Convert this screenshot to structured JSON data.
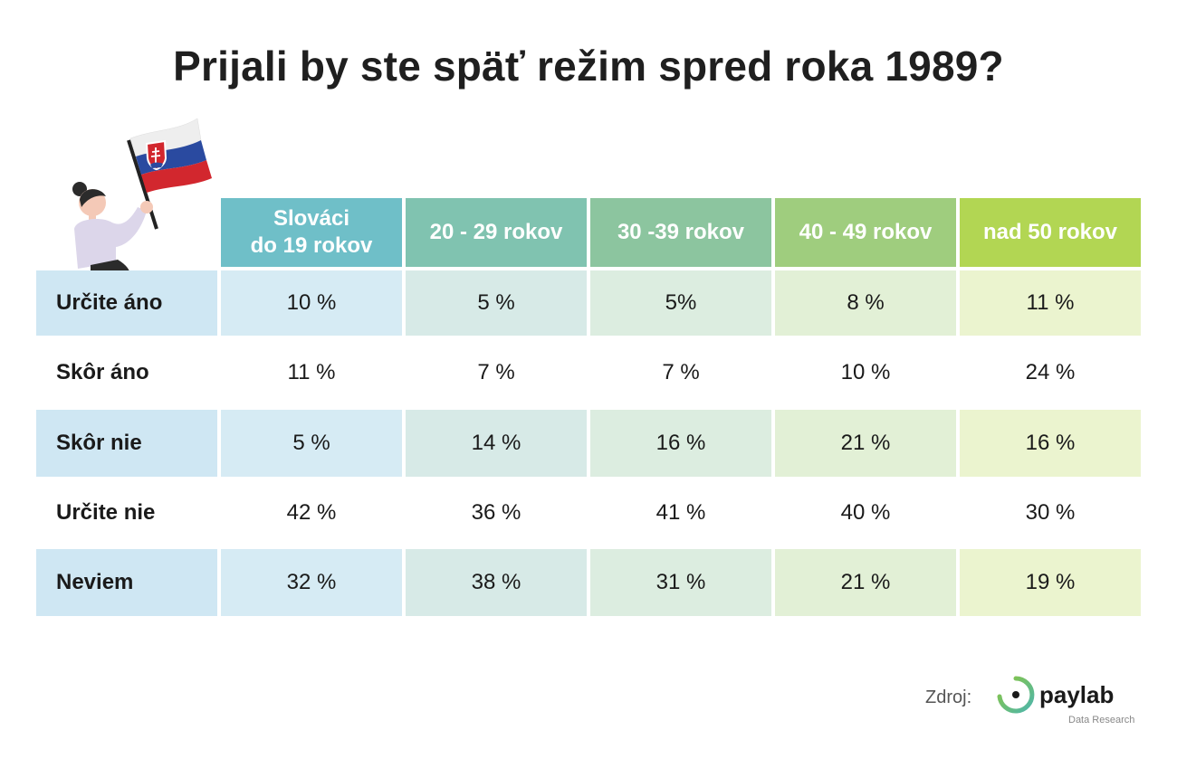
{
  "title": "Prijali by ste späť režim spred roka 1989?",
  "chart_data": {
    "type": "table",
    "title": "Prijali by ste späť režim spred roka 1989?",
    "columns": [
      [
        "Slováci",
        "do 19 rokov"
      ],
      [
        "20 - 29 rokov"
      ],
      [
        "30 -39 rokov"
      ],
      [
        "40 - 49 rokov"
      ],
      [
        "nad 50 rokov"
      ]
    ],
    "rows": [
      {
        "label": "Určite áno",
        "values": [
          "10 %",
          "5 %",
          "5%",
          "8 %",
          "11 %"
        ]
      },
      {
        "label": "Skôr áno",
        "values": [
          "11 %",
          "7 %",
          "7 %",
          "10 %",
          "24 %"
        ]
      },
      {
        "label": "Skôr nie",
        "values": [
          "5 %",
          "14 %",
          "16 %",
          "21 %",
          "16 %"
        ]
      },
      {
        "label": "Určite nie",
        "values": [
          "42 %",
          "36 %",
          "41 %",
          "40 %",
          "30 %"
        ]
      },
      {
        "label": "Neviem",
        "values": [
          "32 %",
          "38 %",
          "31 %",
          "21 %",
          "19 %"
        ]
      }
    ]
  },
  "colors": {
    "header": [
      "#6fbfc8",
      "#80c3b0",
      "#8cc59f",
      "#9fcd7e",
      "#b2d653"
    ],
    "shaded": [
      "#d6ebf4",
      "#d7eae7",
      "#dcede0",
      "#e2f0d6",
      "#ebf4cf"
    ],
    "label_shaded": "#cfe7f3",
    "logo_green": "#8cc63f",
    "logo_teal": "#4db6ac"
  },
  "source": {
    "label": "Zdroj:",
    "brand": "paylab",
    "tagline": "Data Research"
  }
}
